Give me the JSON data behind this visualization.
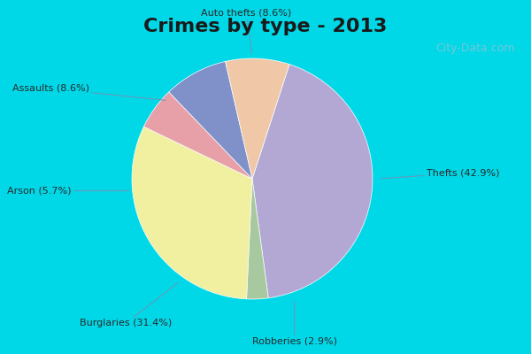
{
  "title": "Crimes by type - 2013",
  "title_fontsize": 16,
  "slices": [
    {
      "label": "Thefts (42.9%)",
      "value": 42.9,
      "color": "#b3a8d4"
    },
    {
      "label": "Robberies (2.9%)",
      "value": 2.9,
      "color": "#a8c8a0"
    },
    {
      "label": "Burglaries (31.4%)",
      "value": 31.4,
      "color": "#f0f0a0"
    },
    {
      "label": "Arson (5.7%)",
      "value": 5.7,
      "color": "#e8a0a8"
    },
    {
      "label": "Assaults (8.6%)",
      "value": 8.6,
      "color": "#8090c8"
    },
    {
      "label": "Auto thefts (8.6%)",
      "value": 8.6,
      "color": "#f0c8a8"
    }
  ],
  "background_top": "#00d8e8",
  "background_main": "#c8e8d8",
  "watermark": "City-Data.com"
}
